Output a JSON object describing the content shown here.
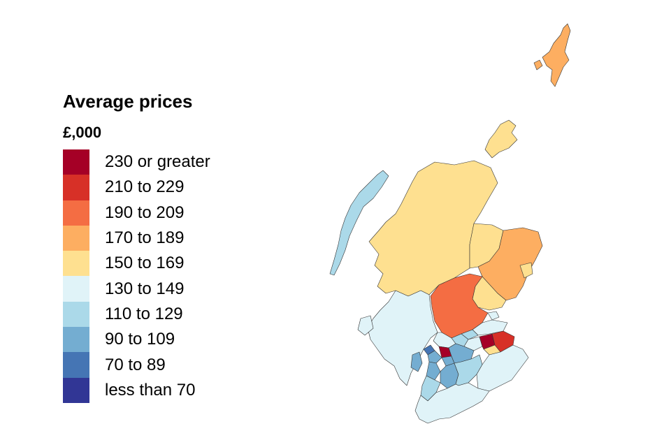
{
  "legend": {
    "title": "Average prices",
    "unit": "£,000",
    "bins": [
      {
        "label": "230 or greater",
        "color": "#a50026"
      },
      {
        "label": "210 to 229",
        "color": "#d73027"
      },
      {
        "label": "190 to 209",
        "color": "#f46d43"
      },
      {
        "label": "170 to 189",
        "color": "#fdae61"
      },
      {
        "label": "150 to 169",
        "color": "#fee090"
      },
      {
        "label": "130 to 149",
        "color": "#e0f3f8"
      },
      {
        "label": "110 to 129",
        "color": "#abd9e9"
      },
      {
        "label": "90 to 109",
        "color": "#74add1"
      },
      {
        "label": "70 to 89",
        "color": "#4575b4"
      },
      {
        "label": "less than 70",
        "color": "#313695"
      }
    ]
  },
  "map": {
    "regions": [
      {
        "id": "shetland",
        "bin": 3
      },
      {
        "id": "orkney",
        "bin": 4
      },
      {
        "id": "western-isles",
        "bin": 6
      },
      {
        "id": "highland",
        "bin": 4
      },
      {
        "id": "moray",
        "bin": 4
      },
      {
        "id": "aberdeenshire",
        "bin": 3
      },
      {
        "id": "aberdeen",
        "bin": 4
      },
      {
        "id": "angus",
        "bin": 4
      },
      {
        "id": "perth-kinross",
        "bin": 2
      },
      {
        "id": "argyll-bute",
        "bin": 5
      },
      {
        "id": "stirling",
        "bin": 5
      },
      {
        "id": "fife",
        "bin": 5
      },
      {
        "id": "dundee",
        "bin": 5
      },
      {
        "id": "west-lothian",
        "bin": 5
      },
      {
        "id": "edinburgh",
        "bin": 0
      },
      {
        "id": "east-lothian",
        "bin": 1
      },
      {
        "id": "midlothian",
        "bin": 4
      },
      {
        "id": "glasgow",
        "bin": 7
      },
      {
        "id": "east-dunbartonshire",
        "bin": 0
      },
      {
        "id": "renfrewshire",
        "bin": 7
      },
      {
        "id": "inverclyde",
        "bin": 8
      },
      {
        "id": "north-lanarkshire",
        "bin": 7
      },
      {
        "id": "south-lanarkshire",
        "bin": 6
      },
      {
        "id": "north-ayrshire",
        "bin": 7
      },
      {
        "id": "east-ayrshire",
        "bin": 7
      },
      {
        "id": "south-ayrshire",
        "bin": 6
      },
      {
        "id": "clackmannanshire",
        "bin": 6
      },
      {
        "id": "falkirk",
        "bin": 6
      },
      {
        "id": "arran",
        "bin": 7
      },
      {
        "id": "dumfries-galloway",
        "bin": 5
      },
      {
        "id": "scottish-borders",
        "bin": 5
      }
    ]
  }
}
